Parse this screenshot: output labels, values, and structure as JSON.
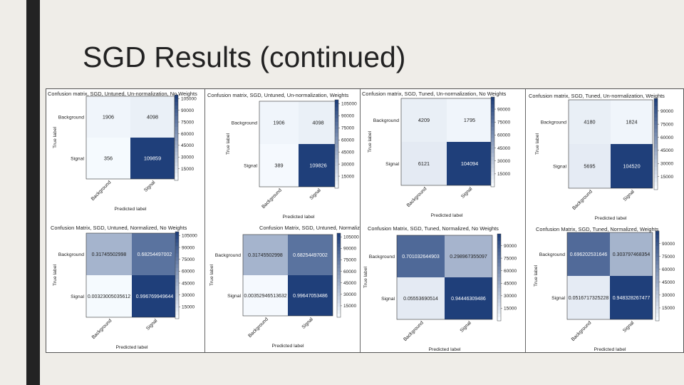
{
  "slide": {
    "title": "SGD Results (continued)"
  },
  "colors": {
    "light": "#f7fbff",
    "dark": "#1f3f7a"
  },
  "chart_data": [
    {
      "type": "heatmap",
      "title": "Confusion matrix, SGD, Untuned, Un-normalization, No Weights",
      "xlabel": "Predicted label",
      "ylabel": "True label",
      "x_categories": [
        "Background",
        "Signal"
      ],
      "y_categories": [
        "Background",
        "Signal"
      ],
      "values": [
        [
          1906,
          4098
        ],
        [
          356,
          109859
        ]
      ],
      "labels": [
        [
          "1906",
          "4098"
        ],
        [
          "356",
          "109859"
        ]
      ],
      "colorbar": {
        "min": 0,
        "max": 109859,
        "ticks": [
          "105000",
          "90000",
          "75000",
          "60000",
          "45000",
          "30000",
          "15000"
        ]
      }
    },
    {
      "type": "heatmap",
      "title": "Confusion matrix, SGD, Untuned, Un-normalization, Weights",
      "xlabel": "Predicted label",
      "ylabel": "True label",
      "x_categories": [
        "Background",
        "Signal"
      ],
      "y_categories": [
        "Background",
        "Signal"
      ],
      "values": [
        [
          1906,
          4098
        ],
        [
          389,
          109826
        ]
      ],
      "labels": [
        [
          "1906",
          "4098"
        ],
        [
          "389",
          "109826"
        ]
      ],
      "colorbar": {
        "min": 0,
        "max": 109826,
        "ticks": [
          "105000",
          "90000",
          "75000",
          "60000",
          "45000",
          "30000",
          "15000"
        ]
      }
    },
    {
      "type": "heatmap",
      "title": "Confusion matrix, SGD, Tuned, Un-normalization, No Weights",
      "xlabel": "Predicted label",
      "ylabel": "True label",
      "x_categories": [
        "Background",
        "Signal"
      ],
      "y_categories": [
        "Background",
        "Signal"
      ],
      "values": [
        [
          4209,
          1795
        ],
        [
          6121,
          104094
        ]
      ],
      "labels": [
        [
          "4209",
          "1795"
        ],
        [
          "6121",
          "104094"
        ]
      ],
      "colorbar": {
        "min": 0,
        "max": 104094,
        "ticks": [
          "90000",
          "75000",
          "60000",
          "45000",
          "30000",
          "15000"
        ]
      }
    },
    {
      "type": "heatmap",
      "title": "Confusion matrix, SGD, Tuned, Un-normalization, Weights",
      "xlabel": "Predicted label",
      "ylabel": "True label",
      "x_categories": [
        "Background",
        "Signal"
      ],
      "y_categories": [
        "Background",
        "Signal"
      ],
      "values": [
        [
          4180,
          1824
        ],
        [
          5695,
          104520
        ]
      ],
      "labels": [
        [
          "4180",
          "1824"
        ],
        [
          "5695",
          "104520"
        ]
      ],
      "colorbar": {
        "min": 0,
        "max": 104520,
        "ticks": [
          "90000",
          "75000",
          "60000",
          "45000",
          "30000",
          "15000"
        ]
      }
    },
    {
      "type": "heatmap",
      "title": "Confusion Matrix, SGD, Untuned, Normalized, No Weights",
      "xlabel": "Predicted label",
      "ylabel": "True label",
      "x_categories": [
        "Background",
        "Signal"
      ],
      "y_categories": [
        "Background",
        "Signal"
      ],
      "values": [
        [
          0.31745502998,
          0.68254497002
        ],
        [
          0.00323005035612,
          0.996769949644
        ]
      ],
      "labels": [
        [
          "0.31745502998",
          "0.68254497002"
        ],
        [
          "0.00323005035612",
          "0.996769949644"
        ]
      ],
      "colorbar": {
        "min": 0,
        "max": 109859,
        "ticks": [
          "105000",
          "90000",
          "75000",
          "60000",
          "45000",
          "30000",
          "15000"
        ]
      }
    },
    {
      "type": "heatmap",
      "title": "Confusion Matrix, SGD, Untuned, Normalized, Weights",
      "xlabel": "Predicted label",
      "ylabel": "True label",
      "x_categories": [
        "Background",
        "Signal"
      ],
      "y_categories": [
        "Background",
        "Signal"
      ],
      "values": [
        [
          0.31745502998,
          0.68254497002
        ],
        [
          0.00352946513632,
          0.99647053486
        ]
      ],
      "labels": [
        [
          "0.31745502998",
          "0.68254497002"
        ],
        [
          "0.00352946513632",
          "0.99647053486"
        ]
      ],
      "colorbar": {
        "min": 0,
        "max": 109826,
        "ticks": [
          "105000",
          "90000",
          "75000",
          "60000",
          "45000",
          "30000",
          "15000"
        ]
      }
    },
    {
      "type": "heatmap",
      "title": "Confusion Matrix, SGD, Tuned, Normalized, No Weights",
      "xlabel": "Predicted label",
      "ylabel": "True label",
      "x_categories": [
        "Background",
        "Signal"
      ],
      "y_categories": [
        "Background",
        "Signal"
      ],
      "values": [
        [
          0.701032644903,
          0.298967355097
        ],
        [
          0.05553690514,
          0.94446309486
        ]
      ],
      "labels": [
        [
          "0.701032644903",
          "0.298967355097"
        ],
        [
          "0.05553690514",
          "0.94446309486"
        ]
      ],
      "colorbar": {
        "min": 0,
        "max": 104094,
        "ticks": [
          "90000",
          "75000",
          "60000",
          "45000",
          "30000",
          "15000"
        ]
      }
    },
    {
      "type": "heatmap",
      "title": "Confusion Matrix, SGD, Tuned, Normalized, Weights",
      "xlabel": "Predicted label",
      "ylabel": "True label",
      "x_categories": [
        "Background",
        "Signal"
      ],
      "y_categories": [
        "Background",
        "Signal"
      ],
      "values": [
        [
          0.696202531646,
          0.303797468354
        ],
        [
          0.0516717325228,
          0.948328267477
        ]
      ],
      "labels": [
        [
          "0.696202531646",
          "0.303797468354"
        ],
        [
          "0.0516717325228",
          "0.948328267477"
        ]
      ],
      "colorbar": {
        "min": 0,
        "max": 104520,
        "ticks": [
          "90000",
          "75000",
          "60000",
          "45000",
          "30000",
          "15000"
        ]
      }
    }
  ]
}
